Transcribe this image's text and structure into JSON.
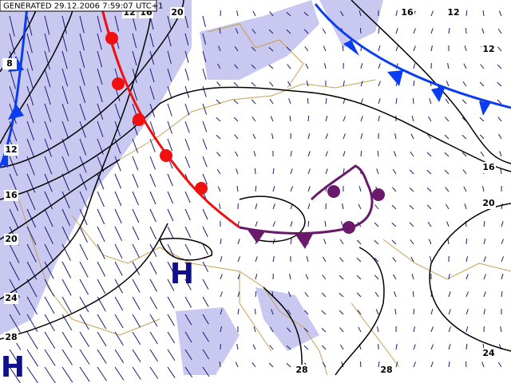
{
  "header": {
    "generated": "GENERATED 29.12.2006 7:59:07 UTC+1"
  },
  "isobar_labels": [
    "12",
    "16",
    "20",
    "16",
    "12",
    "12",
    "16",
    "20",
    "24",
    "28",
    "28",
    "8",
    "12",
    "16",
    "20",
    "24",
    "28"
  ],
  "pressure_centers": [
    "H",
    "H"
  ]
}
